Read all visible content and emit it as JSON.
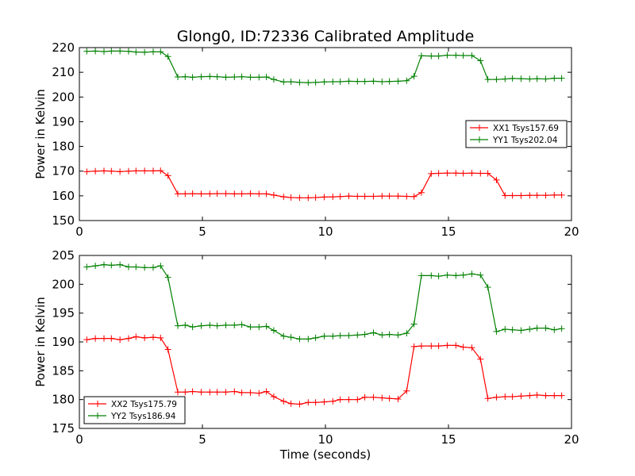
{
  "figure": {
    "title": "Glong0, ID:72336 Calibrated Amplitude",
    "xlabel": "Time (seconds)"
  },
  "colors": {
    "red": "#ff0000",
    "green": "#008000"
  },
  "chart_data": [
    {
      "type": "line",
      "ylabel": "Power in Kelvin",
      "xlim": [
        0,
        20
      ],
      "ylim": [
        150,
        220
      ],
      "xticks": [
        0,
        5,
        10,
        15,
        20
      ],
      "yticks": [
        150,
        160,
        170,
        180,
        190,
        200,
        210,
        220
      ],
      "legend_position": "center-right",
      "x": [
        0.3,
        0.65,
        1.0,
        1.3,
        1.65,
        2.0,
        2.3,
        2.65,
        3.0,
        3.3,
        3.6,
        4.0,
        4.3,
        4.6,
        4.95,
        5.3,
        5.6,
        5.95,
        6.3,
        6.6,
        6.95,
        7.3,
        7.6,
        7.9,
        8.3,
        8.6,
        8.95,
        9.3,
        9.6,
        9.95,
        10.3,
        10.6,
        10.95,
        11.3,
        11.6,
        11.95,
        12.3,
        12.6,
        12.95,
        13.3,
        13.6,
        13.9,
        14.3,
        14.6,
        14.95,
        15.3,
        15.6,
        15.95,
        16.3,
        16.6,
        16.95,
        17.3,
        17.6,
        17.95,
        18.3,
        18.6,
        18.95,
        19.3,
        19.6
      ],
      "series": [
        {
          "name": "XX1 Tsys157.69",
          "color": "#ff0000",
          "values": [
            169.8,
            170.0,
            170.1,
            170.0,
            169.8,
            170.0,
            170.1,
            170.1,
            170.1,
            170.2,
            168.2,
            160.8,
            160.8,
            160.9,
            160.8,
            160.8,
            160.9,
            160.9,
            160.8,
            160.8,
            160.9,
            160.8,
            160.8,
            160.3,
            159.6,
            159.3,
            159.2,
            159.2,
            159.3,
            159.5,
            159.6,
            159.7,
            159.9,
            159.8,
            159.8,
            159.8,
            159.9,
            159.9,
            159.9,
            159.8,
            159.7,
            161.3,
            169.0,
            169.1,
            169.2,
            169.2,
            169.1,
            169.2,
            169.1,
            169.1,
            166.4,
            160.1,
            160.1,
            160.1,
            160.2,
            160.2,
            160.2,
            160.3,
            160.3
          ]
        },
        {
          "name": "YY1 Tsys202.04",
          "color": "#008000",
          "values": [
            218.5,
            218.6,
            218.4,
            218.6,
            218.6,
            218.5,
            218.2,
            218.1,
            218.3,
            218.3,
            216.4,
            208.1,
            208.2,
            208.0,
            208.2,
            208.3,
            208.2,
            208.0,
            208.1,
            208.2,
            208.0,
            208.0,
            208.1,
            207.1,
            206.1,
            206.2,
            205.9,
            205.8,
            205.9,
            206.1,
            206.2,
            206.2,
            206.4,
            206.3,
            206.3,
            206.4,
            206.2,
            206.3,
            206.4,
            206.6,
            208.4,
            216.7,
            216.6,
            216.6,
            216.9,
            216.9,
            216.8,
            216.8,
            214.7,
            207.1,
            207.1,
            207.3,
            207.5,
            207.4,
            207.3,
            207.4,
            207.3,
            207.6,
            207.6
          ]
        }
      ]
    },
    {
      "type": "line",
      "ylabel": "Power in Kelvin",
      "xlim": [
        0,
        20
      ],
      "ylim": [
        175,
        205
      ],
      "xticks": [
        0,
        5,
        10,
        15,
        20
      ],
      "yticks": [
        175,
        180,
        185,
        190,
        195,
        200,
        205
      ],
      "legend_position": "lower-left",
      "x": [
        0.3,
        0.65,
        1.0,
        1.3,
        1.65,
        2.0,
        2.3,
        2.65,
        3.0,
        3.3,
        3.6,
        4.0,
        4.3,
        4.6,
        4.95,
        5.3,
        5.6,
        5.95,
        6.3,
        6.6,
        6.95,
        7.3,
        7.6,
        7.9,
        8.3,
        8.6,
        8.95,
        9.3,
        9.6,
        9.95,
        10.3,
        10.6,
        10.95,
        11.3,
        11.6,
        11.95,
        12.3,
        12.6,
        12.95,
        13.3,
        13.6,
        13.9,
        14.3,
        14.6,
        14.95,
        15.3,
        15.6,
        15.95,
        16.3,
        16.6,
        16.95,
        17.3,
        17.6,
        17.95,
        18.3,
        18.6,
        18.95,
        19.3,
        19.6
      ],
      "series": [
        {
          "name": "XX2 Tsys175.79",
          "color": "#ff0000",
          "values": [
            190.4,
            190.6,
            190.6,
            190.6,
            190.4,
            190.6,
            190.9,
            190.7,
            190.8,
            190.7,
            188.7,
            181.3,
            181.3,
            181.4,
            181.3,
            181.3,
            181.3,
            181.3,
            181.4,
            181.2,
            181.2,
            181.1,
            181.4,
            180.5,
            179.7,
            179.3,
            179.2,
            179.5,
            179.5,
            179.6,
            179.7,
            180.0,
            180.0,
            180.0,
            180.4,
            180.4,
            180.3,
            180.2,
            180.1,
            181.5,
            189.2,
            189.3,
            189.3,
            189.3,
            189.4,
            189.4,
            189.1,
            189.0,
            187.0,
            180.2,
            180.4,
            180.5,
            180.5,
            180.6,
            180.7,
            180.8,
            180.7,
            180.7,
            180.7
          ]
        },
        {
          "name": "YY2 Tsys186.94",
          "color": "#008000",
          "values": [
            203.0,
            203.2,
            203.4,
            203.3,
            203.4,
            203.0,
            203.0,
            202.9,
            202.9,
            203.2,
            201.2,
            192.8,
            192.9,
            192.6,
            192.8,
            192.9,
            192.8,
            192.9,
            192.9,
            193.0,
            192.6,
            192.6,
            192.7,
            192.0,
            191.0,
            190.8,
            190.5,
            190.5,
            190.7,
            191.0,
            191.0,
            191.1,
            191.1,
            191.2,
            191.3,
            191.6,
            191.2,
            191.3,
            191.2,
            191.5,
            193.1,
            201.5,
            201.5,
            201.4,
            201.6,
            201.5,
            201.6,
            201.8,
            201.6,
            199.5,
            191.8,
            192.2,
            192.1,
            192.0,
            192.2,
            192.4,
            192.4,
            192.1,
            192.3
          ]
        }
      ]
    }
  ]
}
